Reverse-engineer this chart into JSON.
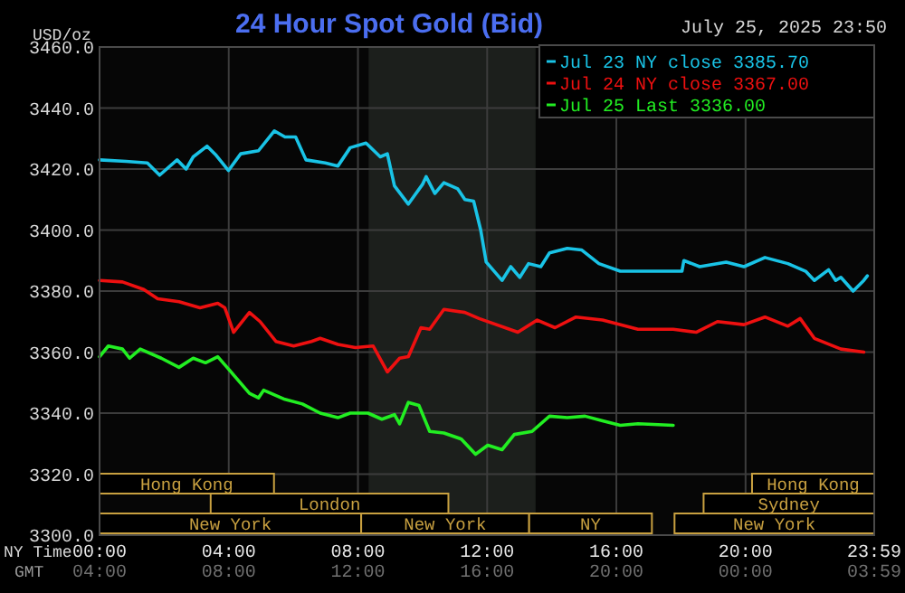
{
  "chart_data": {
    "type": "line",
    "title": "24 Hour Spot Gold (Bid)",
    "subtitle": "July 25, 2025 23:50",
    "ylabel": "USD/oz",
    "xlabel": "NY Time",
    "annotations": [
      "GMT",
      "04:00",
      "08:00",
      "12:00",
      "16:00",
      "20:00",
      "00:00",
      "03:59"
    ],
    "xlim": [
      0,
      23.983
    ],
    "xticks": [
      {
        "value": 0,
        "label": "00:00"
      },
      {
        "value": 4,
        "label": "04:00"
      },
      {
        "value": 8,
        "label": "08:00"
      },
      {
        "value": 12,
        "label": "12:00"
      },
      {
        "value": 16,
        "label": "16:00"
      },
      {
        "value": 20,
        "label": "20:00"
      },
      {
        "value": 23.983,
        "label": "23:59"
      }
    ],
    "ylim": [
      3300,
      3460
    ],
    "yticks": [
      {
        "value": 3300,
        "label": "3300.0"
      },
      {
        "value": 3320,
        "label": "3320.0"
      },
      {
        "value": 3340,
        "label": "3340.0"
      },
      {
        "value": 3360,
        "label": "3360.0"
      },
      {
        "value": 3380,
        "label": "3380.0"
      },
      {
        "value": 3400,
        "label": "3400.0"
      },
      {
        "value": 3420,
        "label": "3420.0"
      },
      {
        "value": 3440,
        "label": "3440.0"
      },
      {
        "value": 3460,
        "label": "3460.0"
      }
    ],
    "grid": true,
    "legend": "top right",
    "bands": [
      {
        "axis": "x",
        "from": 8.33,
        "to": 13.5,
        "color": "#1c1f1c"
      },
      {
        "axis": "x",
        "from": 0,
        "to": 8.1,
        "label": "New York",
        "color": "#c8a040"
      },
      {
        "axis": "x",
        "from": 8.1,
        "to": 13.3,
        "label": "New York",
        "color": "#c8a040"
      },
      {
        "axis": "x",
        "from": 13.3,
        "to": 17.1,
        "label": "NY",
        "color": "#c8a040"
      },
      {
        "axis": "x",
        "from": 17.8,
        "to": 23.983,
        "label": "New York",
        "color": "#c8a040"
      },
      {
        "axis": "x",
        "from": 3.44,
        "to": 10.8,
        "label": "London",
        "color": "#c8a040"
      },
      {
        "axis": "x",
        "from": 18.7,
        "to": 23.983,
        "label": "Sydney",
        "color": "#c8a040"
      },
      {
        "axis": "x",
        "from": 0,
        "to": 5.4,
        "label": "Hong Kong",
        "color": "#c8a040"
      },
      {
        "axis": "x",
        "from": 20.2,
        "to": 23.983,
        "label": "Hong Kong",
        "color": "#c8a040"
      }
    ],
    "series": [
      {
        "name": "Jul 23 NY close 3385.70",
        "color": "#19c3e6",
        "x": [
          0,
          0.82,
          1.48,
          1.86,
          2.4,
          2.68,
          2.9,
          3.33,
          3.61,
          3.99,
          4.37,
          4.92,
          5.41,
          5.74,
          6.07,
          6.39,
          6.99,
          7.38,
          7.76,
          8.25,
          8.69,
          8.91,
          9.13,
          9.56,
          10,
          10.11,
          10.38,
          10.66,
          11.09,
          11.31,
          11.58,
          11.8,
          11.97,
          12.46,
          12.73,
          13.01,
          13.28,
          13.66,
          13.93,
          14.48,
          14.92,
          15.46,
          16.12,
          16.94,
          18.03,
          18.09,
          18.58,
          19.4,
          19.95,
          20.6,
          21.31,
          21.86,
          22.13,
          22.57,
          22.79,
          22.95,
          23.33,
          23.66,
          23.77
        ],
        "values": [
          3423,
          3422.5,
          3422,
          3418,
          3423,
          3420,
          3424,
          3427.5,
          3424.5,
          3419.5,
          3425,
          3426,
          3432.5,
          3430.5,
          3430.5,
          3423,
          3422,
          3421,
          3427,
          3428.5,
          3424,
          3425,
          3414.5,
          3408.5,
          3415,
          3417.5,
          3412,
          3415.5,
          3413.5,
          3410,
          3409.5,
          3400,
          3389.5,
          3383.5,
          3388,
          3384.5,
          3389,
          3388,
          3392.5,
          3394,
          3393.5,
          3389,
          3386.5,
          3386.5,
          3386.5,
          3390,
          3388,
          3389.5,
          3388,
          3391,
          3389,
          3386.5,
          3383.5,
          3387,
          3383.5,
          3384.5,
          3380,
          3383.5,
          3385
        ]
      },
      {
        "name": "Jul 24 NY close 3367.00",
        "color": "#ee1010",
        "x": [
          0,
          0.71,
          1.37,
          1.8,
          2.46,
          3.11,
          3.66,
          3.88,
          4.15,
          4.64,
          4.97,
          5.46,
          6.01,
          6.56,
          6.83,
          7.38,
          7.92,
          8.47,
          8.91,
          9.29,
          9.56,
          9.95,
          10.22,
          10.66,
          11.31,
          11.75,
          12.95,
          13.55,
          14.1,
          14.75,
          15.57,
          16.67,
          17.76,
          18.47,
          19.13,
          19.95,
          20.6,
          21.31,
          21.69,
          22.13,
          22.95,
          23.66
        ],
        "values": [
          3383.5,
          3383,
          3380.5,
          3377.5,
          3376.5,
          3374.5,
          3376,
          3374.5,
          3366.5,
          3373,
          3370,
          3363.5,
          3362,
          3363.5,
          3364.5,
          3362.5,
          3361.5,
          3362,
          3353.5,
          3358,
          3358.5,
          3368,
          3367.5,
          3374,
          3373,
          3371,
          3366.5,
          3370.5,
          3368,
          3371.5,
          3370.5,
          3367.5,
          3367.5,
          3366.5,
          3370,
          3369,
          3371.5,
          3368.5,
          3371,
          3364.5,
          3361,
          3360
        ]
      },
      {
        "name": "Jul 25 Last 3336.00",
        "color": "#22ee22",
        "x": [
          0,
          0.27,
          0.71,
          0.93,
          1.26,
          1.91,
          2.46,
          2.9,
          3.28,
          3.66,
          3.99,
          4.64,
          4.92,
          5.08,
          5.74,
          6.28,
          6.83,
          7.38,
          7.76,
          8.31,
          8.74,
          9.13,
          9.29,
          9.56,
          9.89,
          10.22,
          10.66,
          11.2,
          11.64,
          12.02,
          12.46,
          12.84,
          13.39,
          13.93,
          14.48,
          15.03,
          15.57,
          16.12,
          16.67,
          17.76
        ],
        "values": [
          3358.5,
          3362,
          3361,
          3358,
          3361,
          3358,
          3355,
          3358,
          3356.5,
          3358.5,
          3354.5,
          3346.5,
          3345,
          3347.5,
          3344.5,
          3343,
          3340,
          3338.5,
          3340,
          3340,
          3338,
          3339.5,
          3336.5,
          3343.5,
          3342.5,
          3334,
          3333.5,
          3331.5,
          3326.5,
          3329.5,
          3328,
          3333,
          3334,
          3339,
          3338.5,
          3339,
          3337.5,
          3336,
          3336.5,
          3336
        ]
      }
    ]
  }
}
